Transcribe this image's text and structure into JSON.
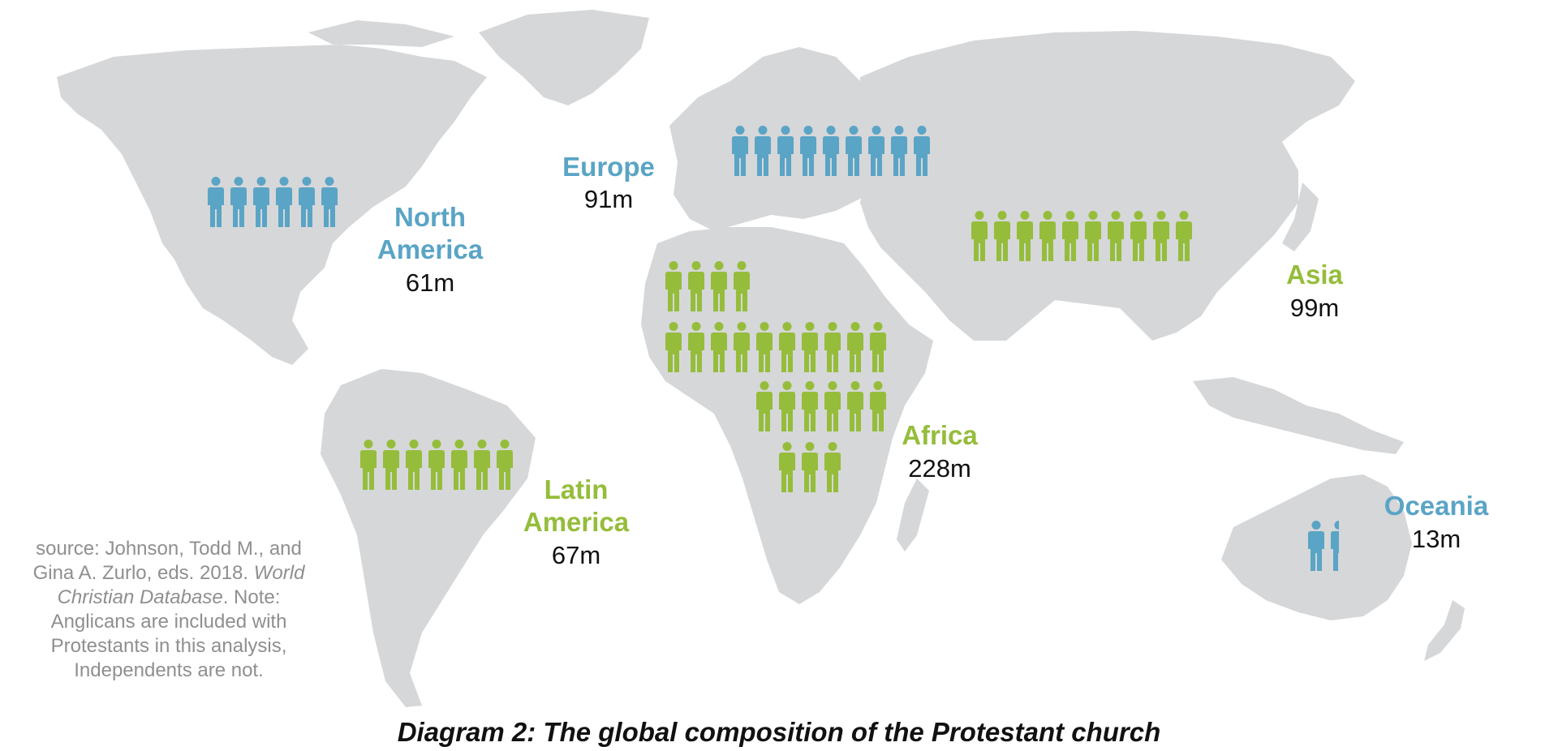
{
  "caption": "Diagram 2: The global composition of the Protestant church",
  "source": {
    "prefix": "source: Johnson, Todd M., and Gina A. Zurlo, eds. 2018.",
    "title": "World Christian Database",
    "note": ". Note: Anglicans are included with Protestants in this analysis, Independents are not."
  },
  "colors": {
    "blue": "#5aa4c6",
    "green": "#95bd3b",
    "land": "#d6d7d9"
  },
  "icon": "person-icon",
  "regions": [
    {
      "name": "North America",
      "value": "61m",
      "color": "blue",
      "icons": 6.0
    },
    {
      "name": "Europe",
      "value": "91m",
      "color": "blue",
      "icons": 9.0
    },
    {
      "name": "Asia",
      "value": "99m",
      "color": "green",
      "icons": 10.0
    },
    {
      "name": "Africa",
      "value": "228m",
      "color": "green",
      "icons": 23.0
    },
    {
      "name": "Latin America",
      "value": "67m",
      "color": "green",
      "icons": 7.0
    },
    {
      "name": "Oceania",
      "value": "13m",
      "color": "blue",
      "icons": 1.5
    }
  ]
}
